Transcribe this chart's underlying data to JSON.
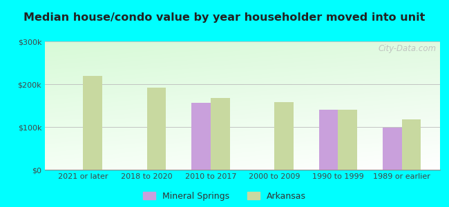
{
  "title": "Median house/condo value by year householder moved into unit",
  "categories": [
    "2021 or later",
    "2018 to 2020",
    "2010 to 2017",
    "2000 to 2009",
    "1990 to 1999",
    "1989 or earlier"
  ],
  "mineral_springs": [
    null,
    null,
    157000,
    null,
    140000,
    98000
  ],
  "arkansas": [
    220000,
    192000,
    168000,
    158000,
    140000,
    118000
  ],
  "mineral_springs_color": "#c9a0dc",
  "arkansas_color": "#c8d9a0",
  "ylim": [
    0,
    300000
  ],
  "yticks": [
    0,
    100000,
    200000,
    300000
  ],
  "ytick_labels": [
    "$0",
    "$100k",
    "$200k",
    "$300k"
  ],
  "background_color": "#00ffff",
  "bar_width": 0.3,
  "legend_mineral_springs": "Mineral Springs",
  "legend_arkansas": "Arkansas",
  "watermark": "City-Data.com"
}
